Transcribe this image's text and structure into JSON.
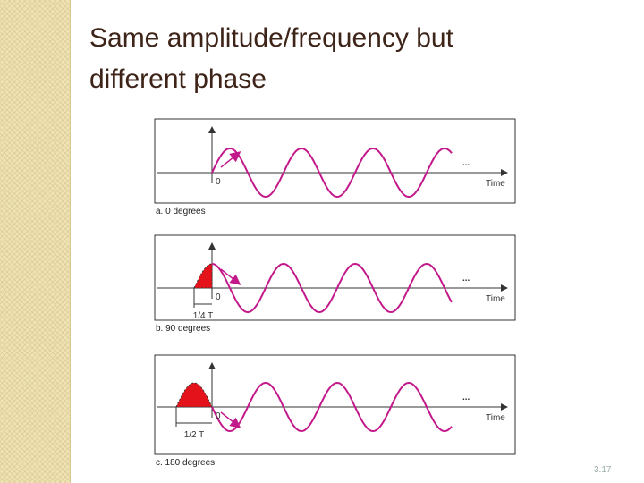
{
  "title_lines": [
    "Same amplitude/frequency but",
    "different phase"
  ],
  "panels": [
    {
      "zero": "0",
      "time": "Time",
      "dots": "...",
      "caption": "a. 0 degrees"
    },
    {
      "offset": "1/4 T",
      "zero": "0",
      "time": "Time",
      "dots": "...",
      "caption": "b. 90 degrees"
    },
    {
      "offset": "1/2 T",
      "zero": "0",
      "time": "Time",
      "dots": "...",
      "caption": "c. 180 degrees"
    }
  ],
  "page_number": "3.17"
}
